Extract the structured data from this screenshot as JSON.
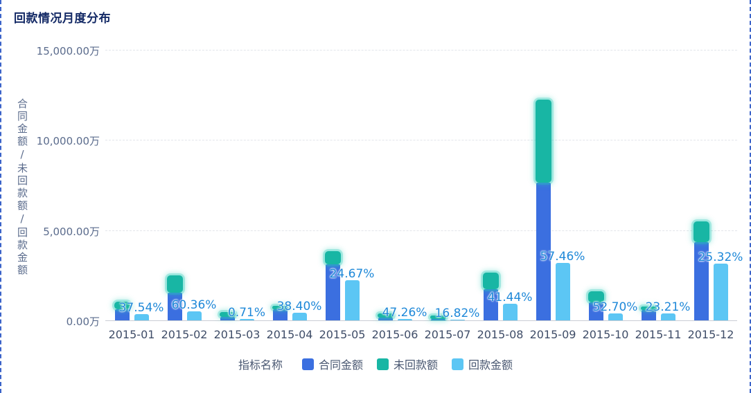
{
  "title": "回款情况月度分布",
  "colors": {
    "contract_blue": "#3b6fe0",
    "unpaid_teal": "#18b6a4",
    "collected_lightblue": "#5cc6f4",
    "percent_label": "#1e88d8",
    "card_border": "#3b63c9"
  },
  "chart_data": {
    "type": "bar",
    "title": "回款情况月度分布",
    "categories": [
      "2015-01",
      "2015-02",
      "2015-03",
      "2015-04",
      "2015-05",
      "2015-06",
      "2015-07",
      "2015-08",
      "2015-09",
      "2015-10",
      "2015-11",
      "2015-12"
    ],
    "series": [
      {
        "name": "合同金额",
        "color": "#3b6fe0",
        "stack": "contract",
        "values": [
          600,
          1540,
          190,
          600,
          3120,
          150,
          60,
          1730,
          7630,
          980,
          560,
          4320
        ]
      },
      {
        "name": "未回款额",
        "color": "#18b6a4",
        "stack": "contract",
        "values": [
          450,
          960,
          260,
          190,
          700,
          225,
          200,
          900,
          4590,
          640,
          190,
          1170
        ]
      },
      {
        "name": "回款金额",
        "color": "#5cc6f4",
        "stack": null,
        "values": [
          340,
          500,
          90,
          410,
          2220,
          75,
          30,
          940,
          3200,
          375,
          375,
          3160
        ]
      }
    ],
    "percent_labels": [
      "37.54%",
      "60.36%",
      "0.71%",
      "38.40%",
      "24.67%",
      "47.26%",
      "16.82%",
      "41.44%",
      "57.46%",
      "52.70%",
      "23.21%",
      "25.32%"
    ],
    "ylabel": "合同金额/未回款额/回款金额",
    "xlabel": "",
    "ylim": [
      0,
      15000
    ],
    "yticks": [
      {
        "label": "15,000.00万",
        "value": 15000
      },
      {
        "label": "10,000.00万",
        "value": 10000
      },
      {
        "label": "5,000.00万",
        "value": 5000
      },
      {
        "label": "0.00万",
        "value": 0
      }
    ],
    "grid": true,
    "legend_title": "指标名称",
    "legend_position": "bottom"
  }
}
